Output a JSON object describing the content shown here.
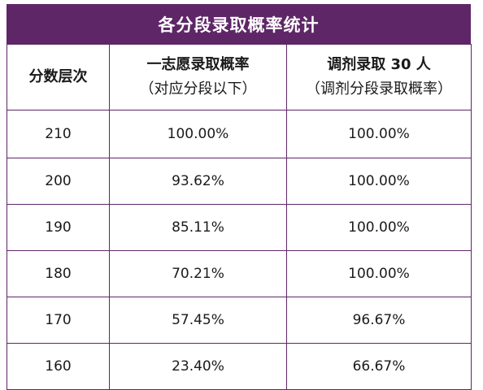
{
  "title": "各分段录取概率统计",
  "headers": {
    "col1": "分数层次",
    "col2_line1": "一志愿录取概率",
    "col2_line2": "（对应分段以下）",
    "col3_line1": "调剂录取 30 人",
    "col3_line2": "（调剂分段录取概率）"
  },
  "rows": [
    {
      "score": "210",
      "first_choice_rate": "100.00%",
      "adjust_rate": "100.00%"
    },
    {
      "score": "200",
      "first_choice_rate": "93.62%",
      "adjust_rate": "100.00%"
    },
    {
      "score": "190",
      "first_choice_rate": "85.11%",
      "adjust_rate": "100.00%"
    },
    {
      "score": "180",
      "first_choice_rate": "70.21%",
      "adjust_rate": "100.00%"
    },
    {
      "score": "170",
      "first_choice_rate": "57.45%",
      "adjust_rate": "96.67%"
    },
    {
      "score": "160",
      "first_choice_rate": "23.40%",
      "adjust_rate": "66.67%"
    }
  ],
  "colors": {
    "header_bg": "#5e2667",
    "border": "#5e2667"
  }
}
